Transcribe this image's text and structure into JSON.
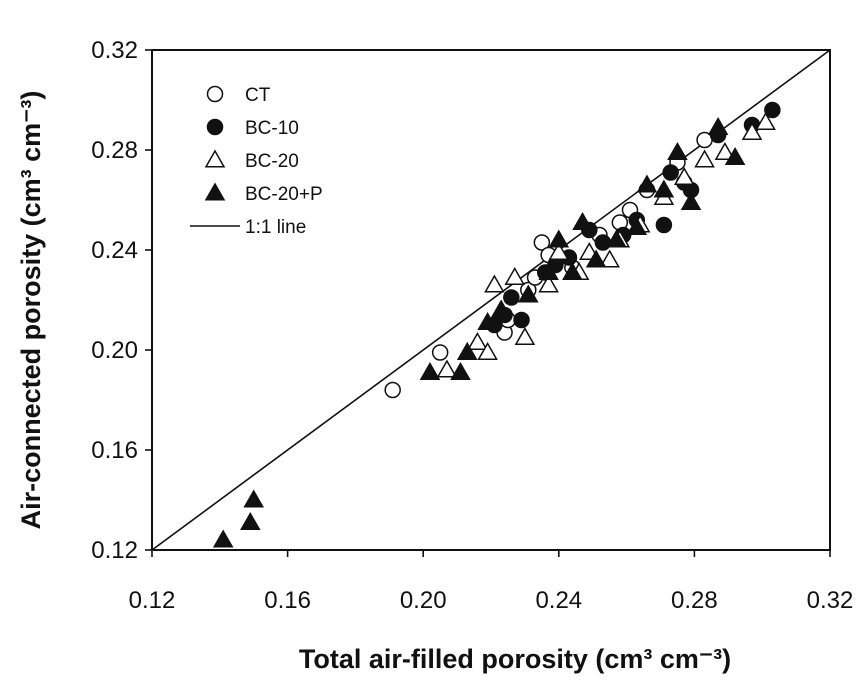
{
  "chart_data": {
    "type": "scatter",
    "xlabel": "Total air-filled porosity (cm³ cm⁻³)",
    "ylabel": "Air-connected porosity (cm³ cm⁻³)",
    "xlim": [
      0.12,
      0.32
    ],
    "ylim": [
      0.12,
      0.32
    ],
    "x_ticks": [
      "0.12",
      "0.16",
      "0.20",
      "0.24",
      "0.28",
      "0.32"
    ],
    "y_ticks": [
      "0.12",
      "0.16",
      "0.20",
      "0.24",
      "0.28",
      "0.32"
    ],
    "grid": false,
    "legend_position": "top-left",
    "reference_line": {
      "name": "1:1 line",
      "from": [
        0.12,
        0.12
      ],
      "to": [
        0.32,
        0.32
      ]
    },
    "series": [
      {
        "name": "CT",
        "marker": "open-circle",
        "x": [
          0.191,
          0.205,
          0.224,
          0.225,
          0.231,
          0.233,
          0.235,
          0.237,
          0.244,
          0.252,
          0.258,
          0.261,
          0.266,
          0.275,
          0.283
        ],
        "y": [
          0.184,
          0.199,
          0.207,
          0.212,
          0.224,
          0.229,
          0.243,
          0.238,
          0.233,
          0.246,
          0.251,
          0.256,
          0.264,
          0.275,
          0.284
        ]
      },
      {
        "name": "BC-10",
        "marker": "filled-circle",
        "x": [
          0.221,
          0.224,
          0.226,
          0.229,
          0.236,
          0.239,
          0.243,
          0.249,
          0.253,
          0.259,
          0.263,
          0.271,
          0.273,
          0.277,
          0.279,
          0.287,
          0.297,
          0.303
        ],
        "y": [
          0.21,
          0.214,
          0.221,
          0.212,
          0.231,
          0.234,
          0.237,
          0.248,
          0.243,
          0.246,
          0.252,
          0.25,
          0.271,
          0.267,
          0.264,
          0.286,
          0.29,
          0.296
        ]
      },
      {
        "name": "BC-20",
        "marker": "open-triangle",
        "x": [
          0.207,
          0.213,
          0.216,
          0.219,
          0.221,
          0.227,
          0.23,
          0.237,
          0.24,
          0.246,
          0.249,
          0.255,
          0.258,
          0.264,
          0.271,
          0.277,
          0.283,
          0.289,
          0.297,
          0.301
        ],
        "y": [
          0.192,
          0.199,
          0.203,
          0.199,
          0.226,
          0.229,
          0.205,
          0.226,
          0.239,
          0.231,
          0.239,
          0.236,
          0.244,
          0.25,
          0.261,
          0.269,
          0.276,
          0.279,
          0.287,
          0.291
        ]
      },
      {
        "name": "BC-20+P",
        "marker": "filled-triangle",
        "x": [
          0.141,
          0.149,
          0.15,
          0.202,
          0.211,
          0.213,
          0.219,
          0.223,
          0.231,
          0.237,
          0.24,
          0.244,
          0.247,
          0.251,
          0.257,
          0.263,
          0.266,
          0.271,
          0.275,
          0.279,
          0.287,
          0.292
        ],
        "y": [
          0.124,
          0.131,
          0.14,
          0.191,
          0.191,
          0.199,
          0.211,
          0.216,
          0.222,
          0.231,
          0.244,
          0.231,
          0.251,
          0.236,
          0.244,
          0.249,
          0.266,
          0.264,
          0.279,
          0.259,
          0.289,
          0.277
        ]
      }
    ]
  }
}
